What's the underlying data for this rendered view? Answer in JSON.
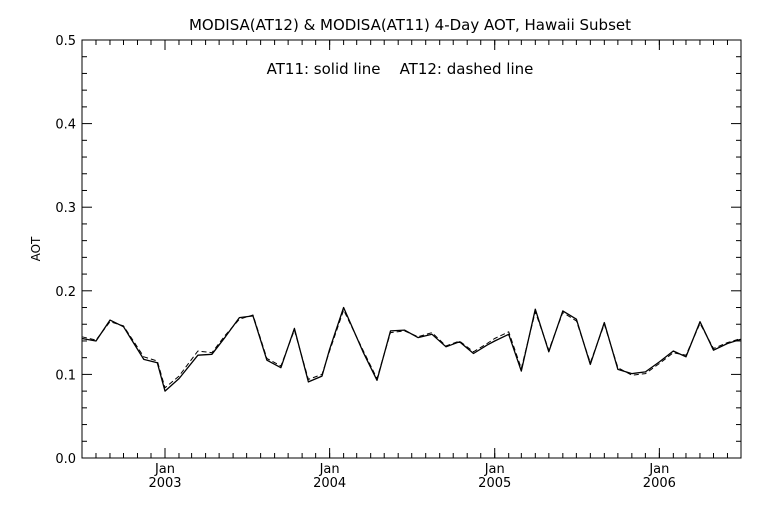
{
  "chart_data": {
    "type": "line",
    "title": "MODISA(AT12) & MODISA(AT11) 4-Day AOT, Hawaii Subset",
    "annotation": "AT11: solid line    AT12: dashed line",
    "xlabel": "",
    "ylabel": "AOT",
    "xlim": [
      "2002-07-01",
      "2006-07-01"
    ],
    "ylim": [
      0.0,
      0.5
    ],
    "yticks": [
      "0.0",
      "0.1",
      "0.2",
      "0.3",
      "0.4",
      "0.5"
    ],
    "xticks": [
      {
        "date": "2003-01-01",
        "month": "Jan",
        "year": "2003"
      },
      {
        "date": "2004-01-01",
        "month": "Jan",
        "year": "2004"
      },
      {
        "date": "2005-01-01",
        "month": "Jan",
        "year": "2005"
      },
      {
        "date": "2006-01-01",
        "month": "Jan",
        "year": "2006"
      }
    ],
    "grid": false,
    "series": [
      {
        "name": "AT11",
        "style": "solid",
        "x": [
          "2002-07-01",
          "2002-08-01",
          "2002-09-01",
          "2002-10-01",
          "2002-11-15",
          "2002-12-15",
          "2003-01-01",
          "2003-02-01",
          "2003-03-15",
          "2003-04-15",
          "2003-05-15",
          "2003-06-15",
          "2003-07-15",
          "2003-08-15",
          "2003-09-15",
          "2003-10-15",
          "2003-11-15",
          "2003-12-15",
          "2004-01-01",
          "2004-02-01",
          "2004-03-15",
          "2004-04-15",
          "2004-05-15",
          "2004-06-15",
          "2004-07-15",
          "2004-08-15",
          "2004-09-15",
          "2004-10-15",
          "2004-11-15",
          "2004-12-15",
          "2005-01-01",
          "2005-02-01",
          "2005-03-01",
          "2005-04-01",
          "2005-05-01",
          "2005-06-01",
          "2005-07-01",
          "2005-08-01",
          "2005-09-01",
          "2005-10-01",
          "2005-11-01",
          "2005-12-01",
          "2006-01-01",
          "2006-02-01",
          "2006-03-01",
          "2006-04-01",
          "2006-05-01",
          "2006-06-01",
          "2006-07-01"
        ],
        "values": [
          0.143,
          0.14,
          0.165,
          0.157,
          0.118,
          0.114,
          0.08,
          0.095,
          0.123,
          0.124,
          0.145,
          0.168,
          0.17,
          0.117,
          0.108,
          0.155,
          0.091,
          0.098,
          0.13,
          0.18,
          0.127,
          0.093,
          0.152,
          0.153,
          0.144,
          0.148,
          0.133,
          0.139,
          0.125,
          0.135,
          0.14,
          0.148,
          0.104,
          0.178,
          0.127,
          0.176,
          0.166,
          0.112,
          0.162,
          0.106,
          0.101,
          0.103,
          0.115,
          0.128,
          0.121,
          0.163,
          0.129,
          0.137,
          0.142
        ]
      },
      {
        "name": "AT12",
        "style": "dashed",
        "x": [
          "2002-07-01",
          "2002-08-01",
          "2002-09-01",
          "2002-10-01",
          "2002-11-15",
          "2002-12-15",
          "2003-01-01",
          "2003-02-01",
          "2003-03-15",
          "2003-04-15",
          "2003-05-15",
          "2003-06-15",
          "2003-07-15",
          "2003-08-15",
          "2003-09-15",
          "2003-10-15",
          "2003-11-15",
          "2003-12-15",
          "2004-01-01",
          "2004-02-01",
          "2004-03-15",
          "2004-04-15",
          "2004-05-15",
          "2004-06-15",
          "2004-07-15",
          "2004-08-15",
          "2004-09-15",
          "2004-10-15",
          "2004-11-15",
          "2004-12-15",
          "2005-01-01",
          "2005-02-01",
          "2005-03-01",
          "2005-04-01",
          "2005-05-01",
          "2005-06-01",
          "2005-07-01",
          "2005-08-01",
          "2005-09-01",
          "2005-10-01",
          "2005-11-01",
          "2005-12-01",
          "2006-01-01",
          "2006-02-01",
          "2006-03-01",
          "2006-04-01",
          "2006-05-01",
          "2006-06-01",
          "2006-07-01"
        ],
        "values": [
          0.145,
          0.141,
          0.163,
          0.158,
          0.121,
          0.116,
          0.084,
          0.098,
          0.128,
          0.126,
          0.147,
          0.166,
          0.171,
          0.119,
          0.11,
          0.153,
          0.094,
          0.1,
          0.128,
          0.177,
          0.129,
          0.095,
          0.15,
          0.152,
          0.145,
          0.15,
          0.134,
          0.14,
          0.127,
          0.137,
          0.143,
          0.151,
          0.107,
          0.175,
          0.129,
          0.174,
          0.164,
          0.114,
          0.16,
          0.108,
          0.099,
          0.101,
          0.113,
          0.126,
          0.123,
          0.161,
          0.131,
          0.138,
          0.143
        ]
      }
    ]
  }
}
